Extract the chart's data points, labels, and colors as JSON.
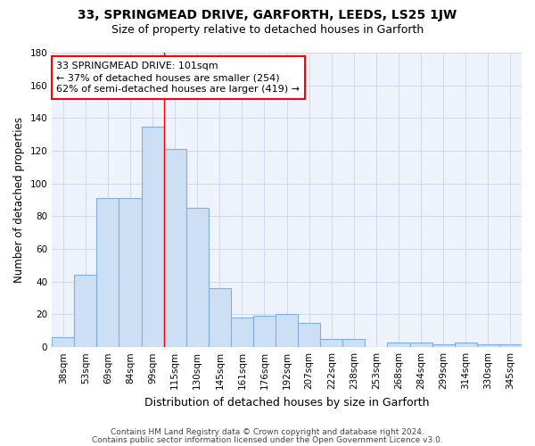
{
  "title1": "33, SPRINGMEAD DRIVE, GARFORTH, LEEDS, LS25 1JW",
  "title2": "Size of property relative to detached houses in Garforth",
  "xlabel": "Distribution of detached houses by size in Garforth",
  "ylabel": "Number of detached properties",
  "categories": [
    "38sqm",
    "53sqm",
    "69sqm",
    "84sqm",
    "99sqm",
    "115sqm",
    "130sqm",
    "145sqm",
    "161sqm",
    "176sqm",
    "192sqm",
    "207sqm",
    "222sqm",
    "238sqm",
    "253sqm",
    "268sqm",
    "284sqm",
    "299sqm",
    "314sqm",
    "330sqm",
    "345sqm"
  ],
  "values": [
    6,
    44,
    91,
    91,
    135,
    121,
    85,
    36,
    18,
    19,
    20,
    15,
    5,
    5,
    0,
    3,
    3,
    2,
    3,
    2,
    2
  ],
  "bar_color": "#ccdff5",
  "bar_edge_color": "#7fb0e0",
  "vline_x": 4.5,
  "vline_color": "red",
  "annotation_line1": "33 SPRINGMEAD DRIVE: 101sqm",
  "annotation_line2": "← 37% of detached houses are smaller (254)",
  "annotation_line3": "62% of semi-detached houses are larger (419) →",
  "annotation_box_color": "white",
  "annotation_box_edge_color": "red",
  "ylim": [
    0,
    180
  ],
  "yticks": [
    0,
    20,
    40,
    60,
    80,
    100,
    120,
    140,
    160,
    180
  ],
  "grid_color": "#d0d8e8",
  "bg_color": "#eef2fa",
  "footer1": "Contains HM Land Registry data © Crown copyright and database right 2024.",
  "footer2": "Contains public sector information licensed under the Open Government Licence v3.0.",
  "title1_fontsize": 10,
  "title2_fontsize": 9,
  "tick_fontsize": 7.5,
  "ylabel_fontsize": 8.5,
  "xlabel_fontsize": 9,
  "annot_fontsize": 8,
  "footer_fontsize": 6.5
}
